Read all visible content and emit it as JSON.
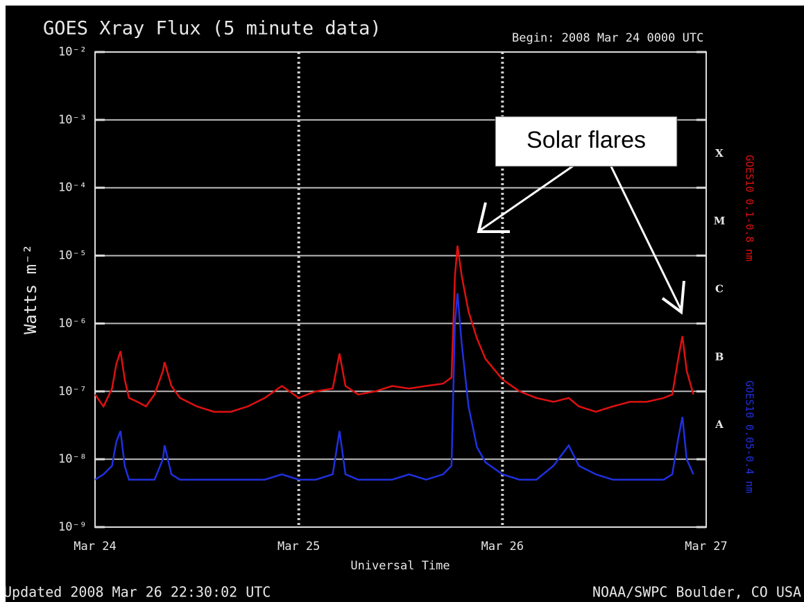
{
  "chart_data": {
    "type": "line",
    "title": "GOES Xray Flux (5 minute data)",
    "subtitle": "Begin:  2008 Mar 24 0000 UTC",
    "ylabel": "Watts m⁻²",
    "xlabel": "Universal Time",
    "footer_left": "Updated 2008 Mar 26 22:30:02 UTC",
    "footer_right": "NOAA/SWPC Boulder, CO USA",
    "annotation": "Solar flares",
    "log_y": true,
    "grid": true,
    "xlim": [
      0,
      72
    ],
    "xticks": [
      {
        "value": 0,
        "label": "Mar 24"
      },
      {
        "value": 24,
        "label": "Mar 25"
      },
      {
        "value": 48,
        "label": "Mar 26"
      },
      {
        "value": 72,
        "label": "Mar 27"
      }
    ],
    "ylim": [
      1e-09,
      0.01
    ],
    "yticks": [
      {
        "value": 1e-09,
        "label": "10⁻⁹"
      },
      {
        "value": 1e-08,
        "label": "10⁻⁸"
      },
      {
        "value": 1e-07,
        "label": "10⁻⁷"
      },
      {
        "value": 1e-06,
        "label": "10⁻⁶"
      },
      {
        "value": 1e-05,
        "label": "10⁻⁵"
      },
      {
        "value": 0.0001,
        "label": "10⁻⁴"
      },
      {
        "value": 0.001,
        "label": "10⁻³"
      },
      {
        "value": 0.01,
        "label": "10⁻²"
      }
    ],
    "flare_classes": [
      {
        "label": "A",
        "value": 1e-08
      },
      {
        "label": "B",
        "value": 1e-07
      },
      {
        "label": "C",
        "value": 1e-06
      },
      {
        "label": "M",
        "value": 1e-05
      },
      {
        "label": "X",
        "value": 0.0001
      }
    ],
    "x": [
      0,
      1,
      2,
      2.5,
      3,
      3.5,
      4,
      5,
      6,
      7,
      8,
      8.2,
      9,
      10,
      12,
      14,
      16,
      18,
      20,
      22,
      24,
      25,
      26,
      28,
      28.8,
      29.5,
      31,
      33,
      35,
      37,
      39,
      41,
      42,
      42.4,
      42.7,
      43.2,
      44,
      45,
      46,
      48,
      50,
      52,
      54,
      55.8,
      57,
      59,
      61,
      63,
      65,
      67,
      68,
      68.7,
      69.2,
      69.7,
      70.5
    ],
    "series": [
      {
        "name": "GOES10 0.1-0.8 nm",
        "color": "#e01010",
        "values": [
          9e-08,
          6e-08,
          1.1e-07,
          2.5e-07,
          3.9e-07,
          1.5e-07,
          8e-08,
          7e-08,
          6e-08,
          9e-08,
          2e-07,
          2.7e-07,
          1.2e-07,
          8e-08,
          6e-08,
          5e-08,
          5e-08,
          6e-08,
          8e-08,
          1.2e-07,
          8e-08,
          9e-08,
          1e-07,
          1.1e-07,
          3.6e-07,
          1.2e-07,
          9e-08,
          1e-07,
          1.2e-07,
          1.1e-07,
          1.2e-07,
          1.3e-07,
          1.6e-07,
          5e-06,
          1.4e-05,
          5e-06,
          1.5e-06,
          6e-07,
          3e-07,
          1.5e-07,
          1e-07,
          8e-08,
          7e-08,
          8e-08,
          6e-08,
          5e-08,
          6e-08,
          7e-08,
          7e-08,
          8e-08,
          9e-08,
          3e-07,
          6.5e-07,
          2e-07,
          9e-08
        ]
      },
      {
        "name": "GOES10 0.05-0.4 nm",
        "color": "#2030e0",
        "values": [
          5e-09,
          6e-09,
          8e-09,
          1.8e-08,
          2.6e-08,
          8e-09,
          5e-09,
          5e-09,
          5e-09,
          5e-09,
          1e-08,
          1.6e-08,
          6e-09,
          5e-09,
          5e-09,
          5e-09,
          5e-09,
          5e-09,
          5e-09,
          6e-09,
          5e-09,
          5e-09,
          5e-09,
          6e-09,
          2.6e-08,
          6e-09,
          5e-09,
          5e-09,
          5e-09,
          6e-09,
          5e-09,
          6e-09,
          8e-09,
          1e-06,
          2.8e-06,
          5e-07,
          6e-08,
          1.5e-08,
          9e-09,
          6e-09,
          5e-09,
          5e-09,
          8e-09,
          1.6e-08,
          8e-09,
          6e-09,
          5e-09,
          5e-09,
          5e-09,
          5e-09,
          6e-09,
          2e-08,
          4.2e-08,
          1e-08,
          6e-09
        ]
      }
    ]
  }
}
